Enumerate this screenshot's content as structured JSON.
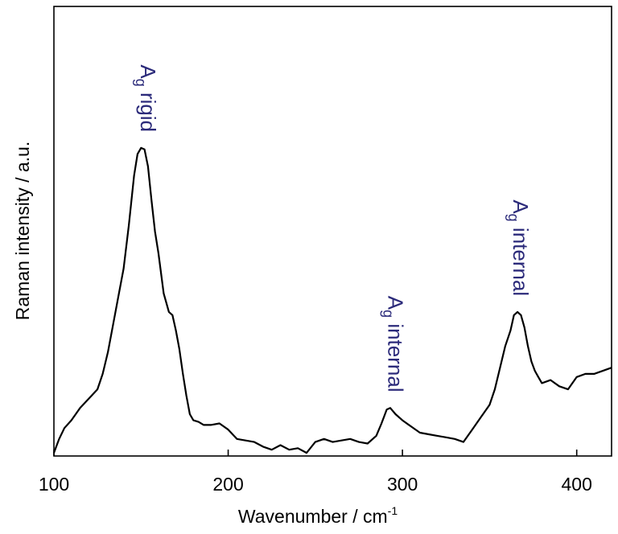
{
  "chart_data": {
    "type": "line",
    "xlabel": "Wavenumber / cm",
    "xlabel_superscript": "-1",
    "ylabel": "Raman intensity / a.u.",
    "xlim": [
      100,
      420
    ],
    "ylim": [
      0,
      100
    ],
    "x_ticks": [
      100,
      200,
      300,
      400
    ],
    "y_ticks_shown": false,
    "grid": false,
    "colors": {
      "line": "#000000",
      "annotation": "#2b2a7a",
      "axes": "#000000"
    },
    "series": [
      {
        "x": [
          100,
          103,
          106,
          110,
          115,
          120,
          125,
          128,
          131,
          134,
          137,
          140,
          143,
          146,
          148,
          150,
          152,
          154,
          156,
          158,
          160,
          163,
          166,
          168,
          170,
          172,
          174,
          176,
          178,
          180,
          183,
          186,
          190,
          195,
          200,
          205,
          210,
          215,
          220,
          225,
          230,
          235,
          240,
          245,
          250,
          255,
          260,
          265,
          270,
          275,
          280,
          285,
          288,
          291,
          293,
          296,
          300,
          305,
          310,
          315,
          320,
          325,
          330,
          335,
          340,
          345,
          350,
          353,
          356,
          359,
          362,
          364,
          366,
          368,
          370,
          372,
          374,
          376,
          378,
          380,
          385,
          390,
          395,
          400,
          405,
          410,
          415,
          420
        ],
        "y": [
          0.5,
          5,
          8.5,
          11,
          15,
          18,
          21,
          26,
          33,
          42,
          51,
          60,
          74,
          90,
          97,
          99,
          98.5,
          93,
          82,
          72,
          65,
          52,
          46,
          45,
          40,
          34,
          26,
          19,
          13,
          11,
          10.5,
          9.5,
          9.5,
          10,
          8,
          5,
          4.5,
          4,
          2.5,
          1.5,
          3,
          1.5,
          2,
          0.5,
          4,
          5,
          4,
          4.5,
          5,
          4,
          3.5,
          6,
          10,
          14.5,
          15,
          13,
          11,
          9,
          7,
          6.5,
          6,
          5.5,
          5,
          4,
          8,
          12,
          16,
          21,
          28,
          35,
          40,
          45,
          46,
          45,
          41,
          35,
          30,
          27,
          25,
          23,
          24,
          22,
          21,
          25,
          26,
          26,
          27,
          28
        ]
      }
    ],
    "annotations": [
      {
        "main": "A",
        "sub": "g",
        "rest": " rigid",
        "x": 153,
        "y": 101
      },
      {
        "main": "A",
        "sub": "g",
        "rest": " internal",
        "x": 295,
        "y": 17
      },
      {
        "main": "A",
        "sub": "g",
        "rest": " internal",
        "x": 367,
        "y": 48
      }
    ]
  }
}
